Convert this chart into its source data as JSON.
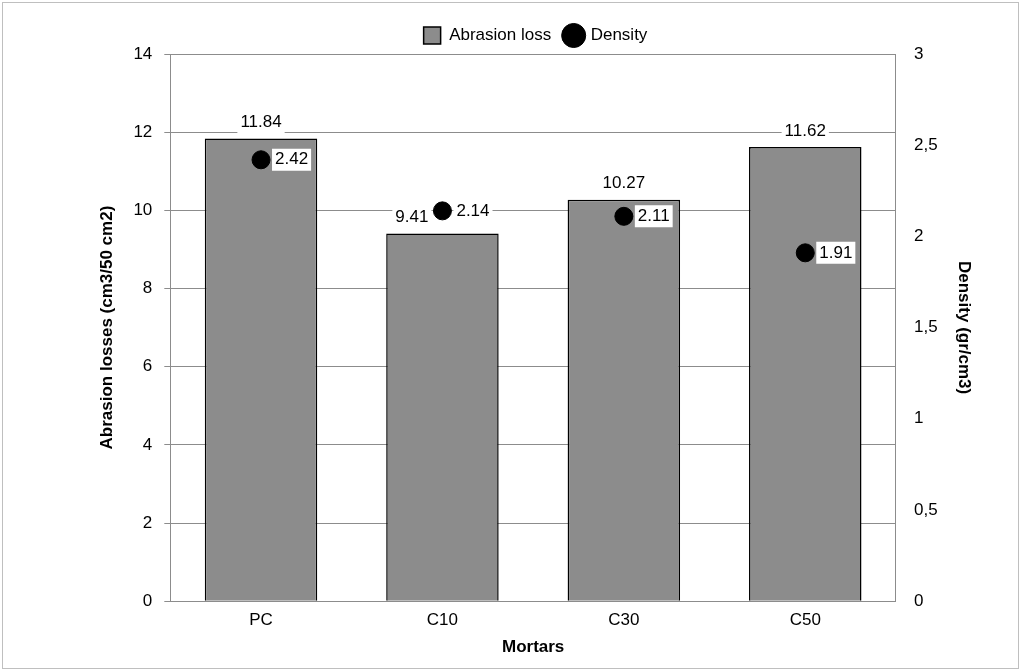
{
  "chart_data": {
    "type": "bar",
    "xlabel": "Mortars",
    "ylabel": "Abrasion losses (cm3/50 cm2)",
    "y2label": "Density (gr/cm3)",
    "categories": [
      "PC",
      "C10",
      "C30",
      "C50"
    ],
    "series": [
      {
        "name": "Abrasion loss",
        "color": "#8c8c8c",
        "values": [
          11.84,
          9.41,
          10.27,
          11.62
        ]
      },
      {
        "name": "Density",
        "type": "scatter",
        "axis": "y2",
        "color": "#000000",
        "values": [
          2.42,
          2.14,
          2.11,
          1.91
        ]
      }
    ],
    "ylim": [
      0,
      14
    ],
    "yticks": [
      0,
      2,
      4,
      6,
      8,
      10,
      12,
      14
    ],
    "y2lim": [
      0,
      3
    ],
    "y2ticks": [
      0,
      {
        "value": 0.5,
        "label": "0,5"
      },
      1,
      {
        "value": 1.5,
        "label": "1,5"
      },
      2,
      {
        "value": 2.5,
        "label": "2,5"
      },
      3
    ],
    "grid": "y",
    "legend": "top",
    "marker": "circle",
    "data_labels": true
  }
}
